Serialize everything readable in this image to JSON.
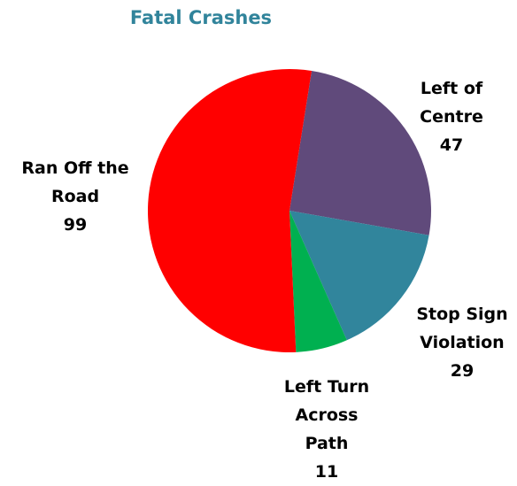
{
  "chart_data": {
    "type": "pie",
    "title": "Fatal Crashes",
    "categories": [
      "Left of Centre",
      "Stop Sign Violation",
      "Left Turn Across Path",
      "Ran Off the Road"
    ],
    "values": [
      47,
      29,
      11,
      99
    ],
    "colors": [
      "#604a7b",
      "#31859c",
      "#00b050",
      "#ff0000"
    ]
  }
}
